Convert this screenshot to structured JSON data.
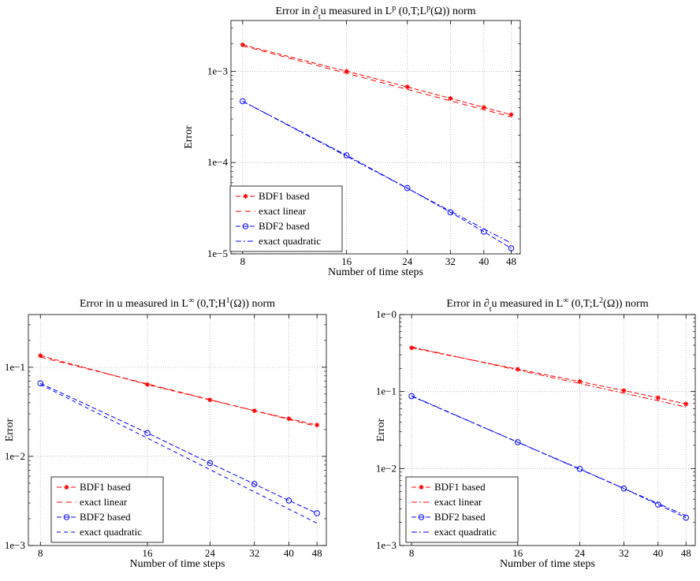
{
  "charts": [
    {
      "title_parts": [
        "Error in ",
        "∂",
        "t",
        "u measured in L",
        "p",
        " (0,T;L",
        "p",
        "(Ω)) norm"
      ],
      "title_style": [
        "n",
        "n",
        "sub",
        "n",
        "sup",
        "n",
        "sup",
        "n"
      ],
      "xlabel": "Number of time steps",
      "ylabel": "Error",
      "yticks": [
        {
          "value": 1e-05,
          "label": "1e−5"
        },
        {
          "value": 0.0001,
          "label": "1e−4"
        },
        {
          "value": 0.001,
          "label": "1e−3"
        }
      ],
      "legend_position": "bottom-left"
    },
    {
      "title_parts": [
        "Error in u measured in L",
        "∞",
        " (0,T;H",
        "1",
        "(Ω)) norm"
      ],
      "title_style": [
        "n",
        "sup",
        "n",
        "sup",
        "n"
      ],
      "xlabel": "Number of time steps",
      "ylabel": "Error",
      "yticks": [
        {
          "value": 0.001,
          "label": "1e−3"
        },
        {
          "value": 0.01,
          "label": "1e−2"
        },
        {
          "value": 0.1,
          "label": "1e−1"
        }
      ],
      "legend_position": "bottom-left"
    },
    {
      "title_parts": [
        "Error in ",
        "∂",
        "t",
        "u measured in L",
        "∞",
        " (0,T;L",
        "2",
        "(Ω)) norm"
      ],
      "title_style": [
        "n",
        "n",
        "sub",
        "n",
        "sup",
        "n",
        "sup",
        "n"
      ],
      "xlabel": "Number of time steps",
      "ylabel": "Error",
      "yticks": [
        {
          "value": 0.001,
          "label": "1e−3"
        },
        {
          "value": 0.01,
          "label": "1e−2"
        },
        {
          "value": 0.1,
          "label": "1e−1"
        },
        {
          "value": 1,
          "label": "1e−0"
        }
      ],
      "legend_position": "bottom-left"
    }
  ],
  "chart_data": [
    {
      "type": "line",
      "xscale": "log",
      "yscale": "log",
      "x": [
        8,
        16,
        24,
        32,
        40,
        48
      ],
      "xticks": [
        8,
        16,
        24,
        32,
        40,
        48
      ],
      "xlim": [
        7.4,
        51
      ],
      "ylim": [
        1e-05,
        0.0036
      ],
      "grid": true,
      "series": [
        {
          "name": "BDF1 based",
          "color": "#ff0000",
          "marker": "star",
          "dash": "6,3",
          "values": [
            0.00195,
            0.001,
            0.000675,
            0.000505,
            0.000402,
            0.000335
          ]
        },
        {
          "name": "exact linear",
          "color": "#ff0000",
          "marker": "none",
          "dash": "7,5",
          "values": [
            0.0019,
            0.00095,
            0.000633,
            0.000475,
            0.00038,
            0.000317
          ]
        },
        {
          "name": "BDF2 based",
          "color": "#0000ff",
          "marker": "circle",
          "dash": "6,3",
          "values": [
            0.00047,
            0.00012,
            5.25e-05,
            2.85e-05,
            1.75e-05,
            1.15e-05
          ]
        },
        {
          "name": "exact quadratic",
          "color": "#0000ff",
          "marker": "none",
          "dash": "7,3,2,3",
          "values": [
            0.00047,
            0.0001175,
            5.22e-05,
            2.94e-05,
            1.88e-05,
            1.31e-05
          ]
        }
      ]
    },
    {
      "type": "line",
      "xscale": "log",
      "yscale": "log",
      "x": [
        8,
        16,
        24,
        32,
        40,
        48
      ],
      "xticks": [
        8,
        16,
        24,
        32,
        40,
        48
      ],
      "xlim": [
        7.4,
        51
      ],
      "ylim": [
        0.001,
        0.39
      ],
      "grid": true,
      "series": [
        {
          "name": "BDF1 based",
          "color": "#ff0000",
          "marker": "star",
          "dash": "6,3",
          "values": [
            0.135,
            0.064,
            0.043,
            0.0325,
            0.0265,
            0.0225
          ]
        },
        {
          "name": "exact linear",
          "color": "#ff0000",
          "marker": "none",
          "dash": "7,5",
          "values": [
            0.13,
            0.065,
            0.0433,
            0.0325,
            0.026,
            0.0217
          ]
        },
        {
          "name": "BDF2 based",
          "color": "#0000ff",
          "marker": "circle",
          "dash": "6,3",
          "values": [
            0.066,
            0.0183,
            0.0084,
            0.0049,
            0.0032,
            0.0023
          ]
        },
        {
          "name": "exact quadratic",
          "color": "#0000ff",
          "marker": "none",
          "dash": "5,4",
          "values": [
            0.064,
            0.016,
            0.0071,
            0.004,
            0.00256,
            0.00178
          ]
        }
      ]
    },
    {
      "type": "line",
      "xscale": "log",
      "yscale": "log",
      "x": [
        8,
        16,
        24,
        32,
        40,
        48
      ],
      "xticks": [
        8,
        16,
        24,
        32,
        40,
        48
      ],
      "xlim": [
        7.4,
        51
      ],
      "ylim": [
        0.001,
        1
      ],
      "grid": true,
      "series": [
        {
          "name": "BDF1 based",
          "color": "#ff0000",
          "marker": "star",
          "dash": "6,3",
          "values": [
            0.37,
            0.195,
            0.135,
            0.103,
            0.083,
            0.069
          ]
        },
        {
          "name": "exact linear",
          "color": "#ff0000",
          "marker": "none",
          "dash": "7,3,2,3",
          "values": [
            0.38,
            0.19,
            0.127,
            0.095,
            0.076,
            0.063
          ]
        },
        {
          "name": "BDF2 based",
          "color": "#0000ff",
          "marker": "circle",
          "dash": "6,3",
          "values": [
            0.087,
            0.022,
            0.0099,
            0.0055,
            0.0034,
            0.0023
          ]
        },
        {
          "name": "exact quadratic",
          "color": "#0000ff",
          "marker": "none",
          "dash": "7,3,2,3",
          "values": [
            0.088,
            0.022,
            0.00978,
            0.0055,
            0.00352,
            0.00244
          ]
        }
      ]
    }
  ]
}
